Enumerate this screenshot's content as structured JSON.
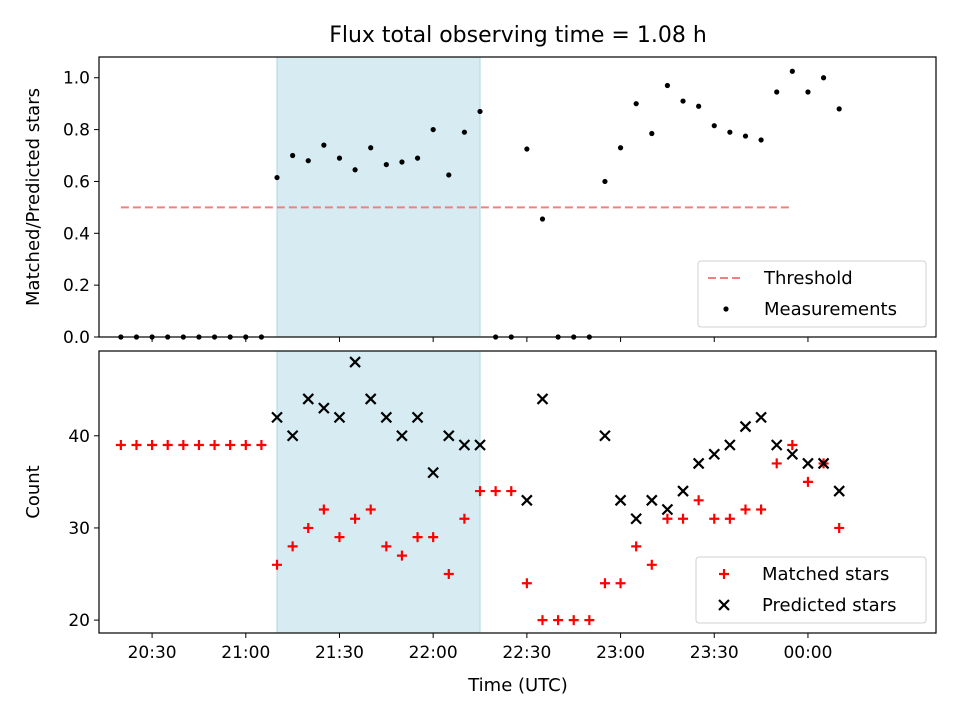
{
  "figure": {
    "title": "Flux total observing time = 1.08 h",
    "xlabel": "Time (UTC)"
  },
  "chart_data": [
    {
      "type": "scatter",
      "panel": "top",
      "title": "Flux total observing time = 1.08 h",
      "ylabel": "Matched/Predicted stars",
      "xlabel": "",
      "x_axis": "time of day (UTC)",
      "xlim": [
        "20:13",
        "00:41"
      ],
      "ylim": [
        0,
        1.08
      ],
      "yticks": [
        "0.0",
        "0.2",
        "0.4",
        "0.6",
        "0.8",
        "1.0"
      ],
      "xticks": [
        "20:30",
        "21:00",
        "21:30",
        "22:00",
        "22:30",
        "23:00",
        "23:30",
        "00:00"
      ],
      "shaded_interval": {
        "start": "21:10",
        "end": "22:15",
        "color": "#add8e6"
      },
      "legend": {
        "position": "lower right",
        "entries": [
          "Threshold",
          "Measurements"
        ]
      },
      "series": [
        {
          "name": "Threshold",
          "style": "dashed-line",
          "color": "#f08080",
          "x": [
            "20:20",
            "23:55"
          ],
          "y": [
            0.5,
            0.5
          ]
        },
        {
          "name": "Measurements",
          "style": "dot",
          "color": "#000000",
          "x": [
            "20:20",
            "20:25",
            "20:30",
            "20:35",
            "20:40",
            "20:45",
            "20:50",
            "20:55",
            "21:00",
            "21:05",
            "21:10",
            "21:15",
            "21:20",
            "21:25",
            "21:30",
            "21:35",
            "21:40",
            "21:45",
            "21:50",
            "21:55",
            "22:00",
            "22:05",
            "22:10",
            "22:15",
            "22:20",
            "22:25",
            "22:30",
            "22:35",
            "22:40",
            "22:45",
            "22:50",
            "22:55",
            "23:00",
            "23:05",
            "23:10",
            "23:15",
            "23:20",
            "23:25",
            "23:30",
            "23:35",
            "23:40",
            "23:45",
            "23:50",
            "23:55",
            "24:00",
            "24:05",
            "24:10"
          ],
          "y": [
            0,
            0,
            0,
            0,
            0,
            0,
            0,
            0,
            0,
            0,
            0.615,
            0.7,
            0.68,
            0.74,
            0.69,
            0.645,
            0.73,
            0.665,
            0.675,
            0.69,
            0.8,
            0.625,
            0.79,
            0.87,
            0,
            0,
            0.725,
            0.455,
            0,
            0,
            0,
            0.6,
            0.73,
            0.9,
            0.785,
            0.97,
            0.91,
            0.89,
            0.815,
            0.79,
            0.775,
            0.76,
            0.945,
            1.025,
            0.945,
            1.0,
            0.88
          ]
        }
      ]
    },
    {
      "type": "scatter",
      "panel": "bottom",
      "ylabel": "Count",
      "xlabel": "Time (UTC)",
      "x_axis": "time of day (UTC)",
      "xlim": [
        "20:13",
        "00:41"
      ],
      "ylim": [
        18.6,
        49.2
      ],
      "yticks": [
        "20",
        "30",
        "40"
      ],
      "xticks": [
        "20:30",
        "21:00",
        "21:30",
        "22:00",
        "22:30",
        "23:00",
        "23:30",
        "00:00"
      ],
      "shaded_interval": {
        "start": "21:10",
        "end": "22:15",
        "color": "#add8e6"
      },
      "legend": {
        "position": "lower right",
        "entries": [
          "Matched stars",
          "Predicted stars"
        ]
      },
      "series": [
        {
          "name": "Matched stars",
          "marker": "plus",
          "color": "#ff0000",
          "x": [
            "20:20",
            "20:25",
            "20:30",
            "20:35",
            "20:40",
            "20:45",
            "20:50",
            "20:55",
            "21:00",
            "21:05",
            "21:10",
            "21:15",
            "21:20",
            "21:25",
            "21:30",
            "21:35",
            "21:40",
            "21:45",
            "21:50",
            "21:55",
            "22:00",
            "22:05",
            "22:10",
            "22:15",
            "22:20",
            "22:25",
            "22:30",
            "22:35",
            "22:40",
            "22:45",
            "22:50",
            "22:55",
            "23:00",
            "23:05",
            "23:10",
            "23:15",
            "23:20",
            "23:25",
            "23:30",
            "23:35",
            "23:40",
            "23:45",
            "23:50",
            "23:55",
            "24:00",
            "24:05",
            "24:10"
          ],
          "y": [
            39,
            39,
            39,
            39,
            39,
            39,
            39,
            39,
            39,
            39,
            26,
            28,
            30,
            32,
            29,
            31,
            32,
            28,
            27,
            29,
            29,
            25,
            31,
            34,
            34,
            34,
            24,
            20,
            20,
            20,
            20,
            24,
            24,
            28,
            26,
            31,
            31,
            33,
            31,
            31,
            32,
            32,
            37,
            39,
            35,
            37,
            30
          ]
        },
        {
          "name": "Predicted stars",
          "marker": "x",
          "color": "#000000",
          "x": [
            "21:10",
            "21:15",
            "21:20",
            "21:25",
            "21:30",
            "21:35",
            "21:40",
            "21:45",
            "21:50",
            "21:55",
            "22:00",
            "22:05",
            "22:10",
            "22:15",
            "22:30",
            "22:35",
            "22:55",
            "23:00",
            "23:05",
            "23:10",
            "23:15",
            "23:20",
            "23:25",
            "23:30",
            "23:35",
            "23:40",
            "23:45",
            "23:50",
            "23:55",
            "24:00",
            "24:05",
            "24:10"
          ],
          "y": [
            42,
            40,
            44,
            43,
            42,
            48,
            44,
            42,
            40,
            42,
            36,
            40,
            39,
            39,
            33,
            44,
            40,
            33,
            31,
            33,
            32,
            34,
            37,
            38,
            39,
            41,
            42,
            39,
            38,
            37,
            37,
            34
          ]
        }
      ]
    }
  ]
}
